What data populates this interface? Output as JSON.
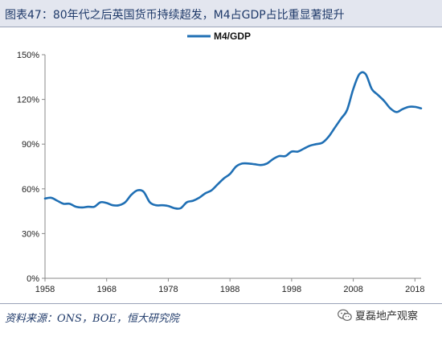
{
  "header": {
    "title": "图表47：80年代之后英国货币持续超发，M4占GDP占比重显著提升"
  },
  "footer": {
    "source": "资料来源：ONS，BOE，恒大研究院",
    "watermark": "夏磊地产观察"
  },
  "colors": {
    "line": "#1f6fb4",
    "axis": "#888888"
  },
  "chart_data": {
    "type": "line",
    "title": "",
    "xlabel": "",
    "ylabel": "",
    "xlim": [
      1958,
      2019
    ],
    "ylim": [
      0,
      150
    ],
    "y_ticks": [
      0,
      30,
      60,
      90,
      120,
      150
    ],
    "y_tick_labels": [
      "0%",
      "30%",
      "60%",
      "90%",
      "120%",
      "150%"
    ],
    "x_ticks": [
      1958,
      1968,
      1978,
      1988,
      1998,
      2008,
      2018
    ],
    "x_tick_labels": [
      "1958",
      "1968",
      "1978",
      "1988",
      "1998",
      "2008",
      "2018"
    ],
    "legend_position": "top-center",
    "series": [
      {
        "name": "M4/GDP",
        "x": [
          1958,
          1959,
          1960,
          1961,
          1962,
          1963,
          1964,
          1965,
          1966,
          1967,
          1968,
          1969,
          1970,
          1971,
          1972,
          1973,
          1974,
          1975,
          1976,
          1977,
          1978,
          1979,
          1980,
          1981,
          1982,
          1983,
          1984,
          1985,
          1986,
          1987,
          1988,
          1989,
          1990,
          1991,
          1992,
          1993,
          1994,
          1995,
          1996,
          1997,
          1998,
          1999,
          2000,
          2001,
          2002,
          2003,
          2004,
          2005,
          2006,
          2007,
          2008,
          2009,
          2010,
          2011,
          2012,
          2013,
          2014,
          2015,
          2016,
          2017,
          2018,
          2019
        ],
        "y": [
          53.5,
          54,
          52,
          50,
          50,
          48,
          47.5,
          48,
          48,
          51,
          50.5,
          49,
          49,
          51,
          56,
          59,
          58,
          51,
          49,
          49,
          48.5,
          47,
          47,
          51,
          52,
          54,
          57,
          59,
          63,
          67,
          70,
          75,
          77,
          77,
          76.5,
          76,
          77,
          80,
          82,
          82,
          85,
          85,
          87,
          89,
          90,
          91,
          95,
          101,
          107,
          113,
          127,
          137,
          137,
          127,
          123,
          119,
          114,
          111.5,
          113.5,
          115,
          115,
          114
        ]
      }
    ]
  }
}
